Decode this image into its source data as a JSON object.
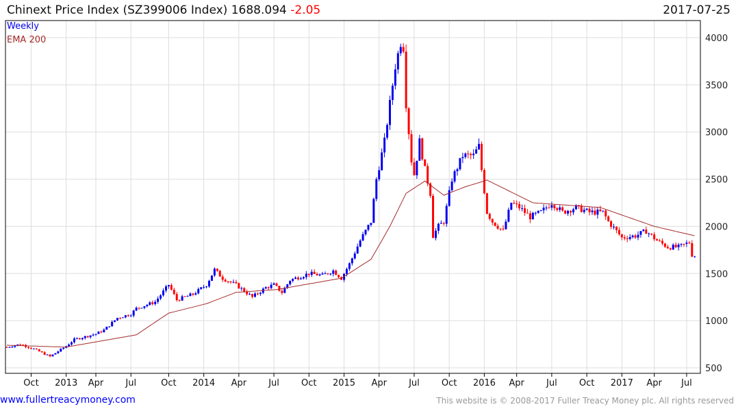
{
  "header": {
    "title": "Chinext Price Index (SZ399006 Index)",
    "last": "1688.094",
    "change": "-2.05",
    "date": "2017-07-25"
  },
  "footer": {
    "site": "www.fullertreacymoney.com",
    "copyright": "This website is © 2008-2017 Fuller Treacy Money plc. All rights reserved"
  },
  "colors": {
    "up": "#0000ee",
    "down": "#ff0000",
    "ema": "#a52a2a",
    "grid": "#dddddd"
  },
  "chart_data": {
    "type": "candlestick",
    "title": "Chinext Price Index (SZ399006 Index)",
    "legend": [
      {
        "label": "Weekly",
        "color": "#0000ee"
      },
      {
        "label": "EMA 200",
        "color": "#a52a2a"
      }
    ],
    "legend_placement": "top-left",
    "frequency": "weekly",
    "start_date": "2012-08-03",
    "end_date": "2017-07-25",
    "ylim": [
      500,
      4000
    ],
    "yticks": [
      500,
      1000,
      1500,
      2000,
      2500,
      3000,
      3500,
      4000
    ],
    "xticks": [
      {
        "label": "Oct",
        "week": 9
      },
      {
        "label": "2013",
        "week": 22
      },
      {
        "label": "Apr",
        "week": 33
      },
      {
        "label": "Jul",
        "week": 46
      },
      {
        "label": "Oct",
        "week": 60
      },
      {
        "label": "2014",
        "week": 73
      },
      {
        "label": "Apr",
        "week": 86
      },
      {
        "label": "Jul",
        "week": 99
      },
      {
        "label": "Oct",
        "week": 112
      },
      {
        "label": "2015",
        "week": 125
      },
      {
        "label": "Apr",
        "week": 138
      },
      {
        "label": "Jul",
        "week": 151
      },
      {
        "label": "Oct",
        "week": 164
      },
      {
        "label": "2016",
        "week": 177
      },
      {
        "label": "Apr",
        "week": 189
      },
      {
        "label": "Jul",
        "week": 202
      },
      {
        "label": "Oct",
        "week": 215
      },
      {
        "label": "2017",
        "week": 228
      },
      {
        "label": "Apr",
        "week": 240
      },
      {
        "label": "Jul",
        "week": 252
      }
    ],
    "close_keypoints": [
      [
        0,
        720
      ],
      [
        5,
        750
      ],
      [
        10,
        700
      ],
      [
        16,
        620
      ],
      [
        22,
        730
      ],
      [
        25,
        800
      ],
      [
        33,
        860
      ],
      [
        36,
        900
      ],
      [
        41,
        1030
      ],
      [
        46,
        1070
      ],
      [
        48,
        1130
      ],
      [
        55,
        1200
      ],
      [
        60,
        1380
      ],
      [
        63,
        1220
      ],
      [
        69,
        1280
      ],
      [
        74,
        1380
      ],
      [
        77,
        1540
      ],
      [
        80,
        1450
      ],
      [
        85,
        1380
      ],
      [
        91,
        1250
      ],
      [
        96,
        1350
      ],
      [
        99,
        1380
      ],
      [
        102,
        1300
      ],
      [
        105,
        1430
      ],
      [
        112,
        1500
      ],
      [
        117,
        1480
      ],
      [
        121,
        1530
      ],
      [
        124,
        1450
      ],
      [
        127,
        1600
      ],
      [
        131,
        1850
      ],
      [
        135,
        2050
      ],
      [
        137,
        2500
      ],
      [
        140,
        2900
      ],
      [
        142,
        3300
      ],
      [
        144,
        3700
      ],
      [
        146,
        3950
      ],
      [
        147,
        3900
      ],
      [
        148,
        3300
      ],
      [
        150,
        2700
      ],
      [
        151,
        2550
      ],
      [
        153,
        2900
      ],
      [
        155,
        2600
      ],
      [
        157,
        2350
      ],
      [
        158,
        1900
      ],
      [
        160,
        2000
      ],
      [
        162,
        2050
      ],
      [
        165,
        2500
      ],
      [
        169,
        2750
      ],
      [
        173,
        2750
      ],
      [
        175,
        2850
      ],
      [
        176,
        2600
      ],
      [
        178,
        2150
      ],
      [
        180,
        2050
      ],
      [
        184,
        1950
      ],
      [
        187,
        2250
      ],
      [
        190,
        2200
      ],
      [
        194,
        2100
      ],
      [
        198,
        2150
      ],
      [
        202,
        2250
      ],
      [
        206,
        2150
      ],
      [
        211,
        2200
      ],
      [
        216,
        2150
      ],
      [
        221,
        2150
      ],
      [
        223,
        2050
      ],
      [
        226,
        1950
      ],
      [
        228,
        1880
      ],
      [
        233,
        1900
      ],
      [
        237,
        1950
      ],
      [
        241,
        1850
      ],
      [
        245,
        1780
      ],
      [
        249,
        1780
      ],
      [
        253,
        1830
      ],
      [
        254,
        1700
      ],
      [
        255,
        1688
      ]
    ],
    "ema200_keypoints": [
      [
        0,
        740
      ],
      [
        22,
        720
      ],
      [
        48,
        850
      ],
      [
        60,
        1080
      ],
      [
        74,
        1180
      ],
      [
        85,
        1300
      ],
      [
        100,
        1330
      ],
      [
        124,
        1450
      ],
      [
        135,
        1650
      ],
      [
        142,
        2000
      ],
      [
        148,
        2350
      ],
      [
        155,
        2480
      ],
      [
        162,
        2330
      ],
      [
        170,
        2420
      ],
      [
        178,
        2490
      ],
      [
        195,
        2250
      ],
      [
        220,
        2200
      ],
      [
        240,
        2000
      ],
      [
        255,
        1900
      ]
    ]
  }
}
